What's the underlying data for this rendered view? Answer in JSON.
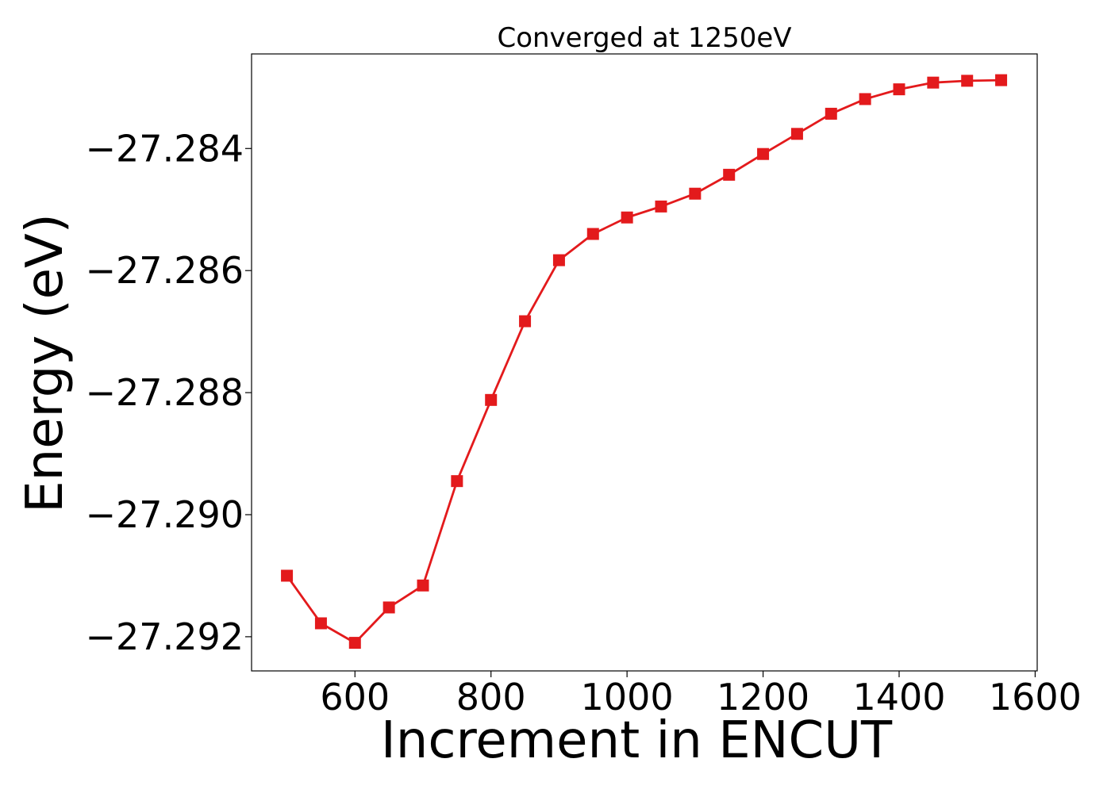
{
  "chart_data": {
    "type": "line",
    "title": "Converged at 1250eV",
    "xlabel": "Increment in ENCUT",
    "ylabel": "Energy (eV)",
    "xlim": [
      448,
      1603
    ],
    "ylim": [
      -27.29256,
      -27.28245
    ],
    "xticks": [
      600,
      800,
      1000,
      1200,
      1400,
      1600
    ],
    "xtick_labels": [
      "600",
      "800",
      "1000",
      "1200",
      "1400",
      "1600"
    ],
    "yticks": [
      -27.284,
      -27.286,
      -27.288,
      -27.29,
      -27.292
    ],
    "ytick_labels": [
      "−27.284",
      "−27.286",
      "−27.288",
      "−27.290",
      "−27.292"
    ],
    "grid": false,
    "series": [
      {
        "color": "#e31a1c",
        "marker": "square",
        "x": [
          500,
          550,
          600,
          650,
          700,
          750,
          800,
          850,
          900,
          950,
          1000,
          1050,
          1100,
          1150,
          1200,
          1250,
          1300,
          1350,
          1400,
          1450,
          1500,
          1550
        ],
        "y": [
          -27.291,
          -27.29178,
          -27.2921,
          -27.29152,
          -27.29116,
          -27.28945,
          -27.28812,
          -27.28683,
          -27.28583,
          -27.2854,
          -27.28513,
          -27.28495,
          -27.28474,
          -27.28443,
          -27.28409,
          -27.28376,
          -27.28343,
          -27.28319,
          -27.28303,
          -27.28292,
          -27.28289,
          -27.28288
        ]
      }
    ]
  }
}
